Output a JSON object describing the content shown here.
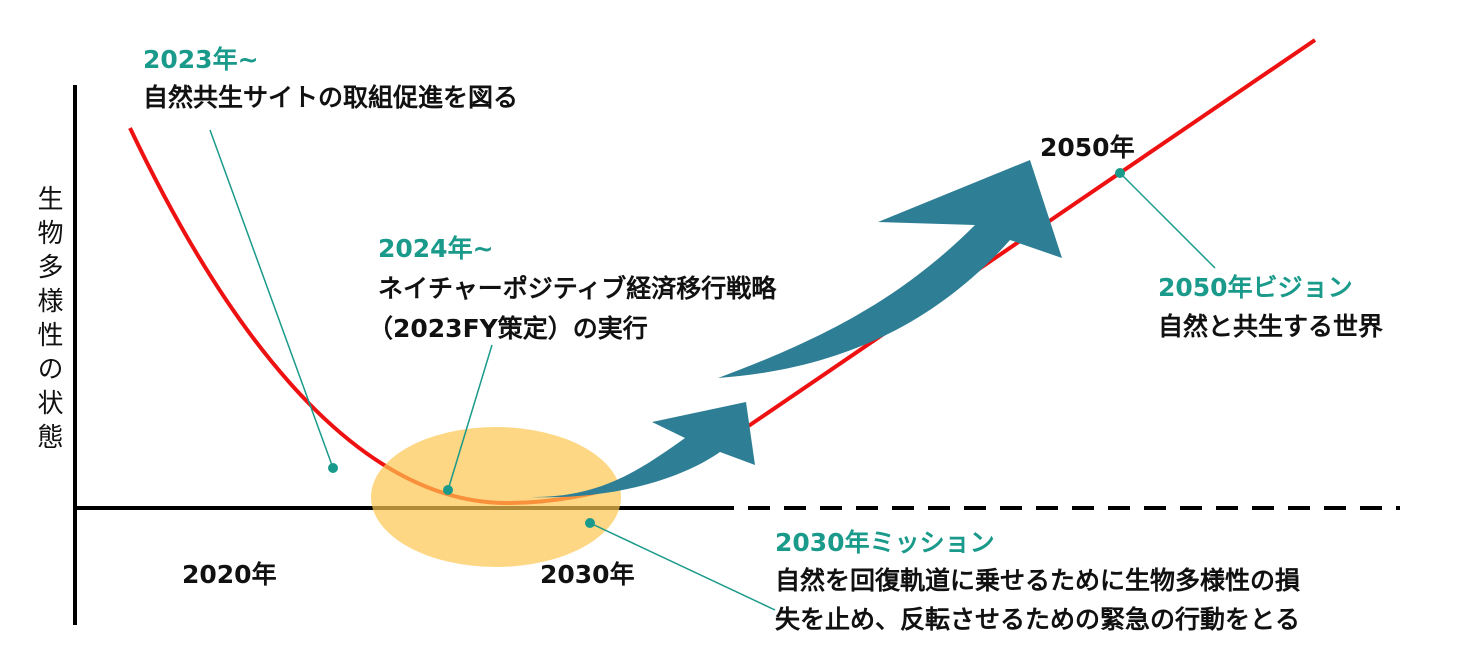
{
  "y_axis_label": "生物多様性の状態",
  "milestone_2023": {
    "title": "2023年~",
    "text": "自然共生サイトの取組促進を図る"
  },
  "milestone_2024": {
    "title": "2024年~",
    "lines": [
      "ネイチャーポジティブ経済移行戦略",
      "（2023FY策定）の実行"
    ]
  },
  "label_2050": "2050年",
  "vision_2050": {
    "title": "2050年ビジョン",
    "text": "自然と共生する世界"
  },
  "x_labels": [
    "2020年",
    "2030年"
  ],
  "mission_2030": {
    "title": "2030年ミッション",
    "lines": [
      "自然を回復軌道に乗せるために生物多様性の損",
      "失を止め、反転させるための緊急の行動をとる"
    ]
  }
}
